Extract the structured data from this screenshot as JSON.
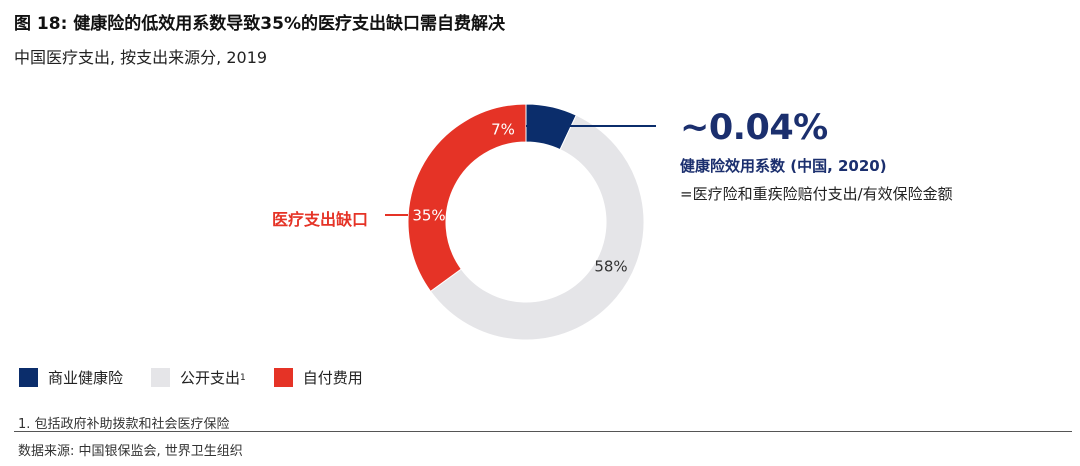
{
  "header": {
    "title": "图 18: 健康险的低效用系数导致35%的医疗支出缺口需自费解决",
    "subtitle": "中国医疗支出, 按支出来源分, 2019"
  },
  "chart_data": {
    "type": "pie",
    "variant": "donut",
    "title": "中国医疗支出, 按支出来源分, 2019",
    "slices": [
      {
        "name": "商业健康险",
        "value": 7,
        "label": "7%",
        "color": "#0b2d6b"
      },
      {
        "name": "公开支出",
        "value": 58,
        "label": "58%",
        "color": "#e5e5e8"
      },
      {
        "name": "自付费用",
        "value": 35,
        "label": "35%",
        "color": "#e53326"
      }
    ],
    "annotations": [
      {
        "text": "医疗支出缺口",
        "target": "自付费用"
      }
    ]
  },
  "callout": {
    "value": "~0.04%",
    "label": "健康险效用系数 (中国, 2020)",
    "desc": "=医疗险和重疾险赔付支出/有效保险金额"
  },
  "gap_label": "医疗支出缺口",
  "legend": {
    "items": [
      {
        "label": "商业健康险",
        "sup": "",
        "color": "#0b2d6b"
      },
      {
        "label": "公开支出",
        "sup": "1",
        "color": "#e5e5e8"
      },
      {
        "label": "自付费用",
        "sup": "",
        "color": "#e53326"
      }
    ]
  },
  "footer": {
    "footnote": "1. 包括政府补助拨款和社会医疗保险",
    "source": "数据来源: 中国银保监会, 世界卫生组织"
  },
  "colors": {
    "navy": "#0b2d6b",
    "gray": "#e5e5e8",
    "red": "#e53326",
    "callout_text": "#1b2f6e"
  }
}
